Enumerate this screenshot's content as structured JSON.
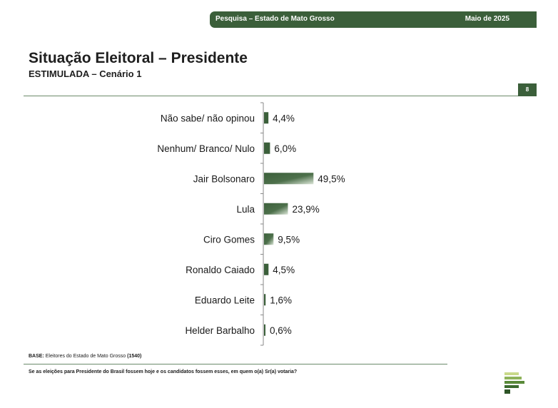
{
  "header": {
    "survey": "Pesquisa – Estado de Mato Grosso",
    "date": "Maio de 2025",
    "page_number": "8"
  },
  "title": "Situação Eleitoral – Presidente",
  "subtitle": "ESTIMULADA – Cenário 1",
  "base": {
    "label": "BASE:",
    "text": " Eleitores do Estado de Mato Grosso ",
    "count": "(1540)"
  },
  "question": "Se as eleições para Presidente do Brasil fossem hoje e os candidatos fossem esses, em quem o(a) Sr(a) votaria?",
  "colors": {
    "brand_green": "#3b5f3a",
    "bar_light": "#dce6d8"
  },
  "chart_data": {
    "type": "bar",
    "orientation": "horizontal",
    "categories": [
      "Não sabe/ não opinou",
      "Nenhum/ Branco/ Nulo",
      "Jair Bolsonaro",
      "Lula",
      "Ciro Gomes",
      "Ronaldo Caiado",
      "Eduardo Leite",
      "Helder Barbalho"
    ],
    "values": [
      4.4,
      6.0,
      49.5,
      23.9,
      9.5,
      4.5,
      1.6,
      0.6
    ],
    "value_labels": [
      "4,4%",
      "6,0%",
      "49,5%",
      "23,9%",
      "9,5%",
      "4,5%",
      "1,6%",
      "0,6%"
    ],
    "unit": "%",
    "xlim": [
      0,
      100
    ],
    "grid": false
  }
}
